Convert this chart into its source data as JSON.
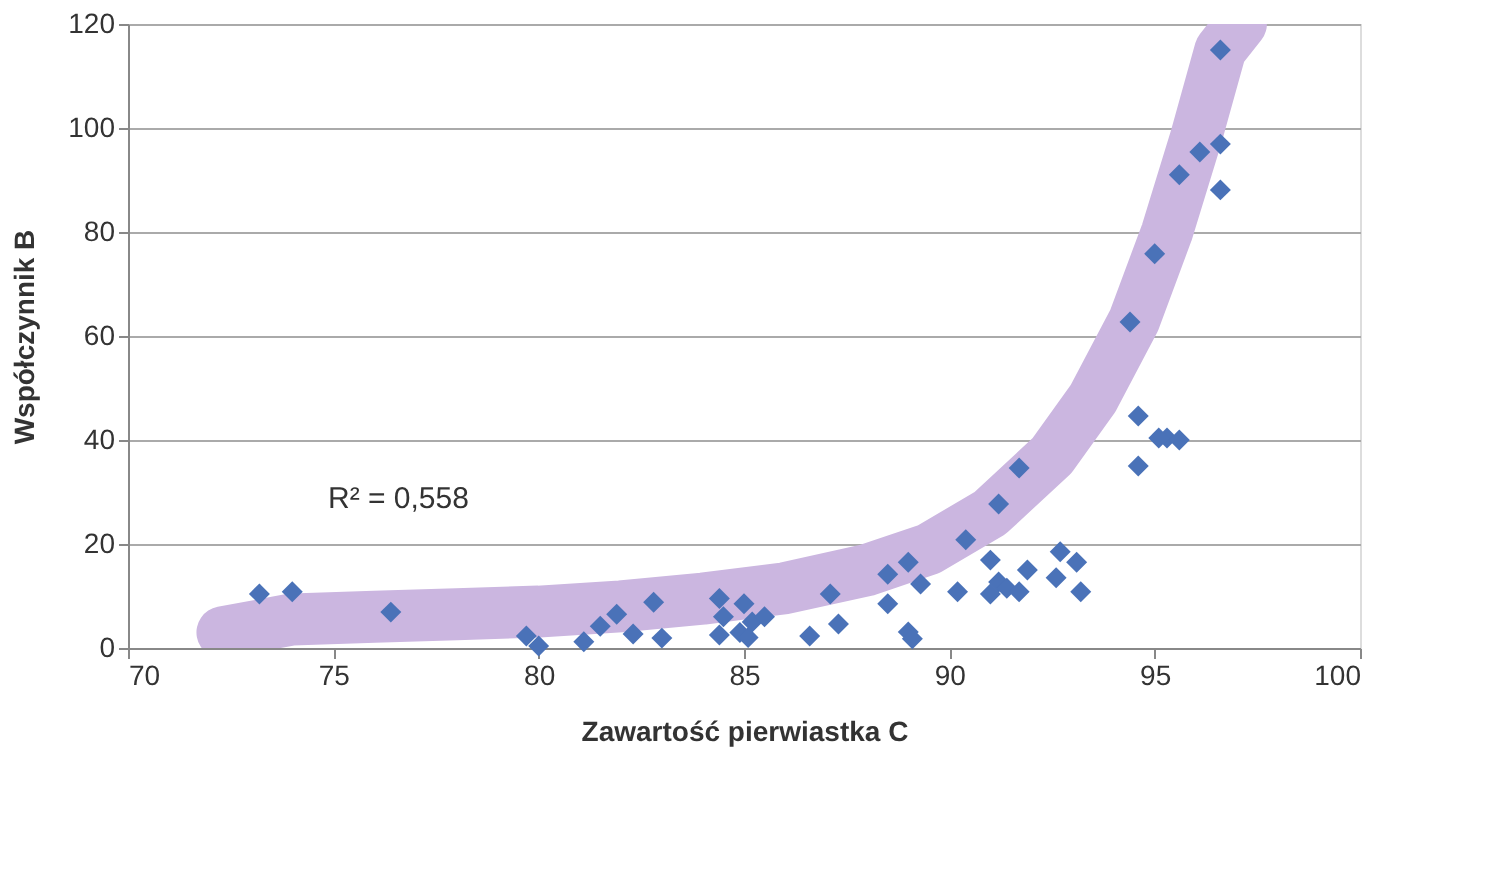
{
  "chart_data": {
    "type": "scatter",
    "xlabel": "Zawartość pierwiastka C",
    "ylabel": "Współczynnik B",
    "xlim": [
      70,
      100
    ],
    "xticks": [
      70,
      75,
      80,
      85,
      90,
      95,
      100
    ],
    "ylim": [
      0,
      120
    ],
    "yticks": [
      0,
      20,
      40,
      60,
      80,
      100,
      120
    ],
    "grid": "y",
    "annotations": [
      "R² = 0,558"
    ],
    "series": [
      {
        "type": "line",
        "color": "#cbb6e0",
        "line_style": "solid",
        "x": [
          72.3,
          74,
          76,
          78,
          80,
          82,
          84,
          86,
          88,
          89.5,
          91,
          92.5,
          93.5,
          94.5,
          95.3,
          96,
          96.6,
          97.1
        ],
        "values": [
          3,
          5.5,
          6,
          6.5,
          7,
          8,
          9.5,
          11.5,
          15,
          19,
          26,
          37,
          48,
          63,
          80,
          98,
          115,
          120
        ]
      },
      {
        "type": "scatter",
        "color": "#4a72b8",
        "marker": "diamond",
        "x": [
          73.2,
          74.0,
          76.4,
          79.7,
          80.0,
          81.1,
          81.5,
          81.9,
          82.3,
          82.8,
          83.0,
          84.4,
          84.5,
          84.4,
          85.0,
          85.2,
          84.9,
          85.5,
          85.1,
          86.6,
          87.1,
          87.3,
          88.5,
          88.5,
          89.0,
          89.3,
          89.0,
          89.1,
          90.4,
          90.2,
          91.0,
          91.2,
          91.7,
          91.2,
          91.4,
          91.0,
          91.7,
          91.9,
          92.6,
          92.7,
          93.1,
          93.2,
          94.6,
          94.6,
          95.3,
          95.6,
          95.1,
          94.4,
          95.0,
          95.6,
          96.1,
          96.6,
          96.6,
          96.6
        ],
        "values": [
          10.4,
          10.8,
          6.9,
          2.3,
          0.4,
          1.2,
          4.2,
          6.5,
          2.7,
          8.8,
          1.9,
          9.5,
          6,
          2.5,
          8.5,
          5,
          3,
          6,
          2,
          2.3,
          10.4,
          4.6,
          14.2,
          8.5,
          16.5,
          12.3,
          3.1,
          1.8,
          20.8,
          10.8,
          16.9,
          27.7,
          34.6,
          12.7,
          11.5,
          10.4,
          10.8,
          15,
          13.5,
          18.5,
          16.5,
          10.8,
          35,
          44.6,
          40.4,
          40,
          40.4,
          62.7,
          75.8,
          91,
          95.4,
          96.9,
          88.1,
          115
        ]
      }
    ]
  }
}
